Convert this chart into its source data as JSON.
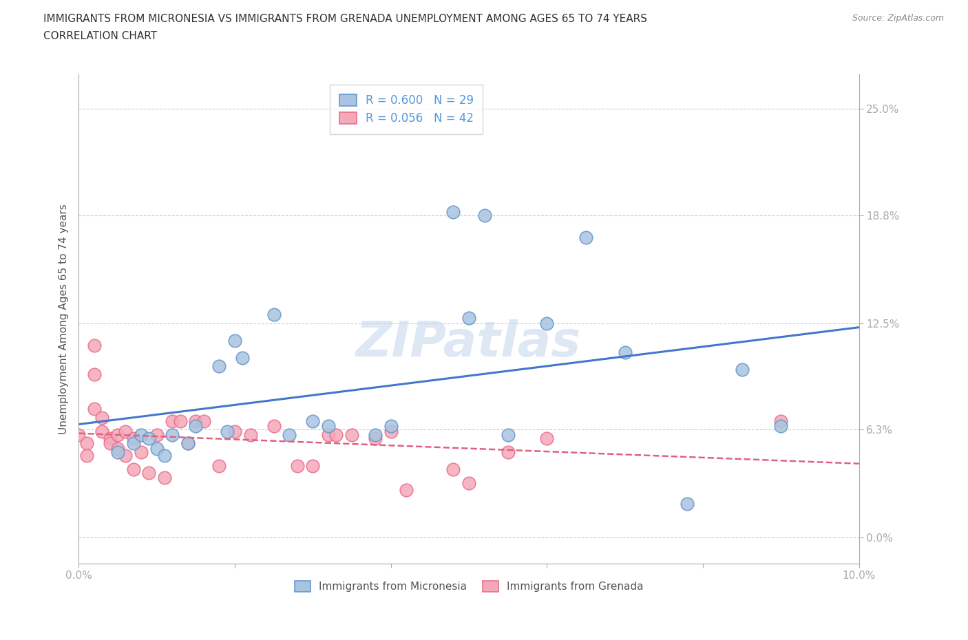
{
  "title_line1": "IMMIGRANTS FROM MICRONESIA VS IMMIGRANTS FROM GRENADA UNEMPLOYMENT AMONG AGES 65 TO 74 YEARS",
  "title_line2": "CORRELATION CHART",
  "source": "Source: ZipAtlas.com",
  "ylabel": "Unemployment Among Ages 65 to 74 years",
  "xlim": [
    0.0,
    0.1
  ],
  "ylim": [
    -0.015,
    0.27
  ],
  "yticks": [
    0.0,
    0.063,
    0.125,
    0.188,
    0.25
  ],
  "ytick_labels": [
    "0.0%",
    "6.3%",
    "12.5%",
    "18.8%",
    "25.0%"
  ],
  "micronesia_x": [
    0.005,
    0.007,
    0.008,
    0.009,
    0.01,
    0.011,
    0.012,
    0.014,
    0.015,
    0.018,
    0.019,
    0.02,
    0.021,
    0.025,
    0.027,
    0.03,
    0.032,
    0.038,
    0.04,
    0.048,
    0.05,
    0.052,
    0.055,
    0.06,
    0.065,
    0.07,
    0.078,
    0.085,
    0.09
  ],
  "micronesia_y": [
    0.05,
    0.055,
    0.06,
    0.058,
    0.052,
    0.048,
    0.06,
    0.055,
    0.065,
    0.1,
    0.062,
    0.115,
    0.105,
    0.13,
    0.06,
    0.068,
    0.065,
    0.06,
    0.065,
    0.19,
    0.128,
    0.188,
    0.06,
    0.125,
    0.175,
    0.108,
    0.02,
    0.098,
    0.065
  ],
  "grenada_x": [
    0.0,
    0.001,
    0.001,
    0.002,
    0.002,
    0.002,
    0.003,
    0.003,
    0.004,
    0.004,
    0.005,
    0.005,
    0.006,
    0.006,
    0.007,
    0.007,
    0.008,
    0.009,
    0.01,
    0.011,
    0.012,
    0.013,
    0.014,
    0.015,
    0.016,
    0.018,
    0.02,
    0.022,
    0.025,
    0.028,
    0.03,
    0.032,
    0.033,
    0.035,
    0.038,
    0.04,
    0.042,
    0.048,
    0.05,
    0.055,
    0.06,
    0.09
  ],
  "grenada_y": [
    0.06,
    0.055,
    0.048,
    0.112,
    0.095,
    0.075,
    0.07,
    0.062,
    0.058,
    0.055,
    0.06,
    0.052,
    0.048,
    0.062,
    0.058,
    0.04,
    0.05,
    0.038,
    0.06,
    0.035,
    0.068,
    0.068,
    0.055,
    0.068,
    0.068,
    0.042,
    0.062,
    0.06,
    0.065,
    0.042,
    0.042,
    0.06,
    0.06,
    0.06,
    0.058,
    0.062,
    0.028,
    0.04,
    0.032,
    0.05,
    0.058,
    0.068
  ],
  "micronesia_color": "#a8c4e0",
  "grenada_color": "#f4a8b8",
  "micronesia_edge": "#6699cc",
  "grenada_edge": "#e87090",
  "trendline_micronesia_color": "#4477cc",
  "trendline_grenada_color": "#e06080",
  "R_micronesia": "0.600",
  "N_micronesia": "29",
  "R_grenada": "0.056",
  "N_grenada": "42",
  "legend_label_micronesia": "Immigrants from Micronesia",
  "legend_label_grenada": "Immigrants from Grenada",
  "watermark": "ZIPatlas",
  "background_color": "#ffffff",
  "grid_color": "#cccccc"
}
